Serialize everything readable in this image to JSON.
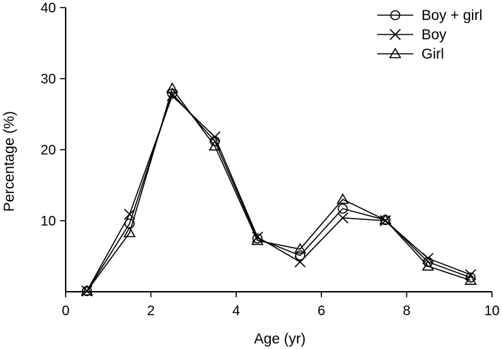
{
  "chart_data": {
    "type": "line",
    "title": "",
    "xlabel": "Age (yr)",
    "ylabel": "Percentage (%)",
    "xlim": [
      0,
      10
    ],
    "ylim": [
      0,
      40
    ],
    "xticks": [
      0,
      2,
      4,
      6,
      8,
      10
    ],
    "yticks": [
      10,
      20,
      30,
      40
    ],
    "x_tick_labels": [
      "0",
      "2",
      "4",
      "6",
      "8",
      "10"
    ],
    "y_tick_labels": [
      "10",
      "20",
      "30",
      "40"
    ],
    "grid": false,
    "legend_position": "top-right",
    "x": [
      0.5,
      1.5,
      2.5,
      3.5,
      4.5,
      5.5,
      6.5,
      7.5,
      8.5,
      9.5
    ],
    "series": [
      {
        "name": "Boy + girl",
        "marker": "circle",
        "values": [
          0.1,
          9.6,
          27.9,
          21.2,
          7.5,
          5.1,
          11.7,
          10.1,
          4.2,
          2.0
        ]
      },
      {
        "name": "Boy",
        "marker": "x",
        "values": [
          0.1,
          10.9,
          27.6,
          21.8,
          7.7,
          4.2,
          10.4,
          10.0,
          4.7,
          2.4
        ]
      },
      {
        "name": "Girl",
        "marker": "triangle",
        "values": [
          0.1,
          8.3,
          28.6,
          20.5,
          7.2,
          6.0,
          13.0,
          10.1,
          3.6,
          1.6
        ]
      }
    ]
  }
}
